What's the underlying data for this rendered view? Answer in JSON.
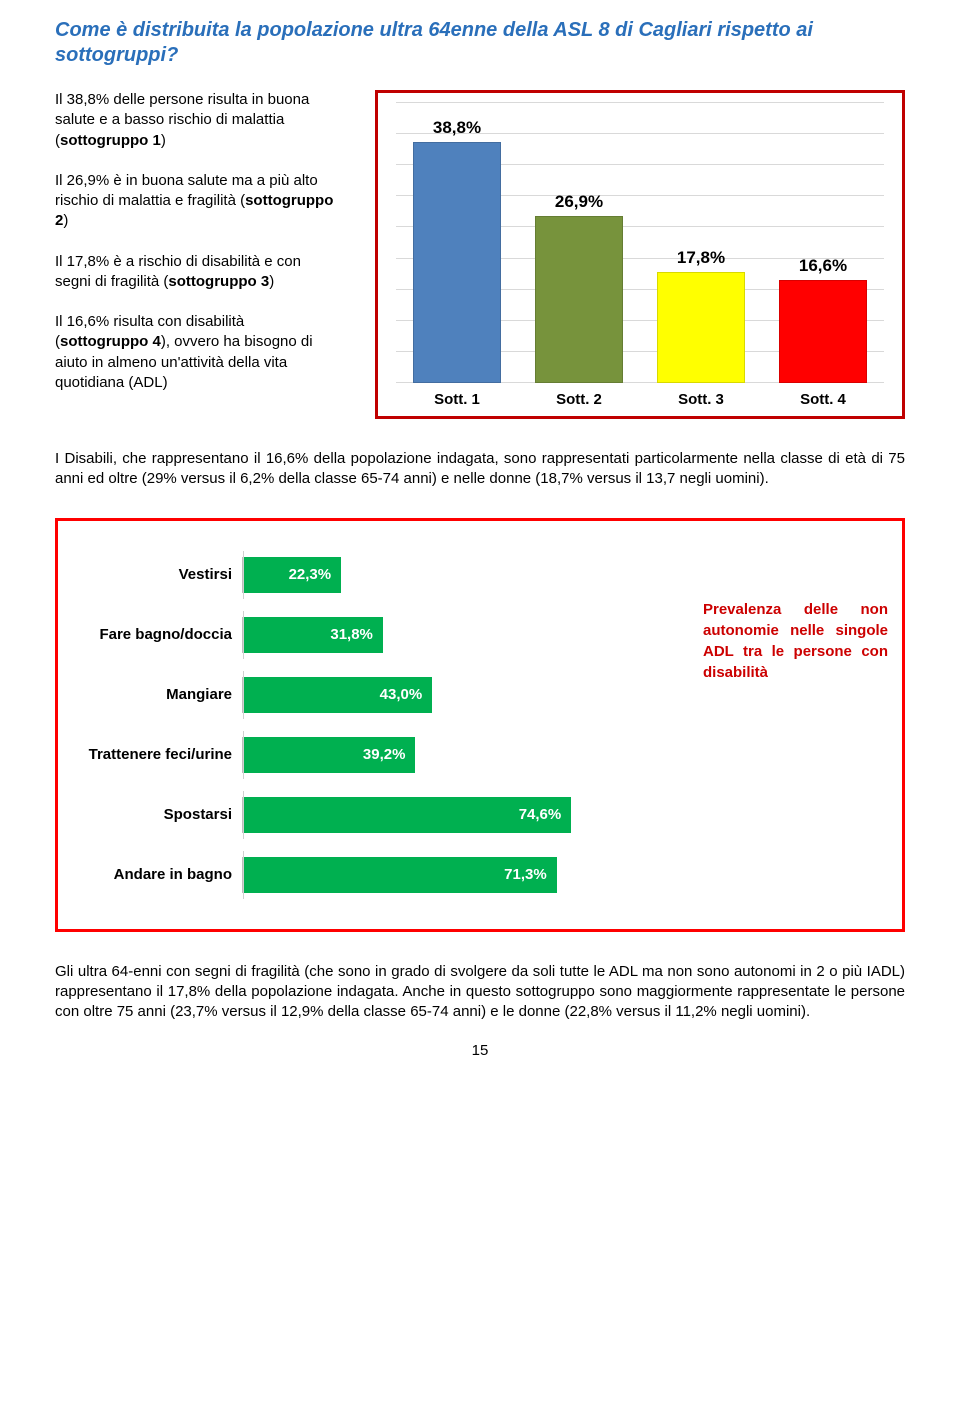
{
  "title": "Come è distribuita la popolazione ultra 64enne della ASL 8 di Cagliari rispetto ai sottogruppi?",
  "left_paragraphs": {
    "p1": "Il 38,8% delle persone risulta in buona salute e a basso rischio di malattia (",
    "p1_bold": "sottogruppo 1",
    "p1_end": ")",
    "p2": "Il 26,9% è in buona salute ma a più alto rischio di malattia e fragilità (",
    "p2_bold": "sottogruppo 2",
    "p2_end": ")",
    "p3": "Il 17,8% è a rischio di disabilità e con segni di fragilità (",
    "p3_bold": "sottogruppo 3",
    "p3_end": ")",
    "p4": "Il 16,6% risulta con disabilità (",
    "p4_bold": "sottogruppo 4",
    "p4_end": "), ovvero ha bisogno di aiuto in almeno un'attività della vita quotidiana (ADL)"
  },
  "chart1": {
    "type": "bar",
    "background_color": "#ffffff",
    "border_color": "#c00000",
    "grid_color": "#d9d9d9",
    "gridline_count": 9,
    "label_fontsize": 17,
    "xlabel_fontsize": 15,
    "ymax": 45,
    "categories": [
      "Sott. 1",
      "Sott. 2",
      "Sott. 3",
      "Sott. 4"
    ],
    "values": [
      38.8,
      26.9,
      17.8,
      16.6
    ],
    "value_labels": [
      "38,8%",
      "26,9%",
      "17,8%",
      "16,6%"
    ],
    "bar_colors": [
      "#4f81bd",
      "#77933c",
      "#ffff00",
      "#ff0000"
    ]
  },
  "mid_paragraph": "I Disabili, che rappresentano il 16,6% della popolazione indagata, sono rappresentati particolarmente nella classe di età di 75 anni ed oltre (29% versus il 6,2% della classe 65-74 anni) e nelle donne (18,7% versus il 13,7 negli uomini).",
  "chart2": {
    "type": "bar-horizontal",
    "background_color": "#ffffff",
    "border_color": "#ff0000",
    "bar_color": "#00b050",
    "grid_color": "#d0d0d0",
    "xmax": 100,
    "categories": [
      "Vestirsi",
      "Fare bagno/doccia",
      "Mangiare",
      "Trattenere feci/urine",
      "Spostarsi",
      "Andare in bagno"
    ],
    "values": [
      22.3,
      31.8,
      43.0,
      39.2,
      74.6,
      71.3
    ],
    "value_labels": [
      "22,3%",
      "31,8%",
      "43,0%",
      "39,2%",
      "74,6%",
      "71,3%"
    ]
  },
  "chart2_sidetext": {
    "line1": "Prevalenza delle non autonomie nelle singole ADL tra le persone con disabilità"
  },
  "bottom_paragraph": "Gli ultra 64-enni con segni di fragilità (che sono in grado di svolgere da soli tutte le ADL ma non sono autonomi in 2 o più IADL) rappresentano il 17,8% della popolazione indagata. Anche in questo sottogruppo sono maggiormente rappresentate le persone con oltre 75 anni (23,7% versus il 12,9% della classe 65-74 anni) e le donne (22,8% versus il 11,2% negli uomini).",
  "page_number": "15"
}
